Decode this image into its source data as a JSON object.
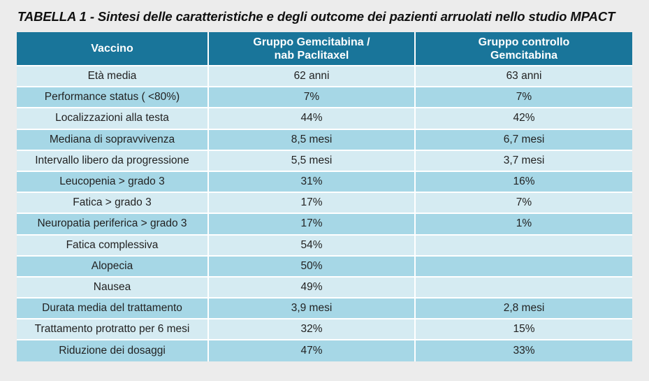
{
  "title": "TABELLA 1 - Sintesi delle caratteristiche e degli outcome dei pazienti arruolati nello studio MPACT",
  "colors": {
    "header_bg": "#19759a",
    "row_light": "#d5ebf2",
    "row_dark": "#a6d7e6",
    "page_bg": "#ececec"
  },
  "table": {
    "headers": [
      [
        "Vaccino"
      ],
      [
        "Gruppo Gemcitabina /",
        "nab Paclitaxel"
      ],
      [
        "Gruppo controllo",
        "Gemcitabina"
      ]
    ],
    "rows": [
      [
        "Età media",
        "62 anni",
        "63 anni"
      ],
      [
        "Performance status ( <80%)",
        "7%",
        "7%"
      ],
      [
        "Localizzazioni alla testa",
        "44%",
        "42%"
      ],
      [
        "Mediana di sopravvivenza",
        "8,5 mesi",
        "6,7 mesi"
      ],
      [
        "Intervallo libero da progressione",
        "5,5 mesi",
        "3,7 mesi"
      ],
      [
        "Leucopenia > grado 3",
        "31%",
        "16%"
      ],
      [
        "Fatica > grado 3",
        "17%",
        "7%"
      ],
      [
        "Neuropatia periferica > grado 3",
        "17%",
        "1%"
      ],
      [
        "Fatica complessiva",
        "54%",
        ""
      ],
      [
        "Alopecia",
        "50%",
        ""
      ],
      [
        "Nausea",
        "49%",
        ""
      ],
      [
        "Durata media del trattamento",
        "3,9 mesi",
        "2,8 mesi"
      ],
      [
        "Trattamento protratto per 6 mesi",
        "32%",
        "15%"
      ],
      [
        "Riduzione dei dosaggi",
        "47%",
        "33%"
      ]
    ]
  }
}
